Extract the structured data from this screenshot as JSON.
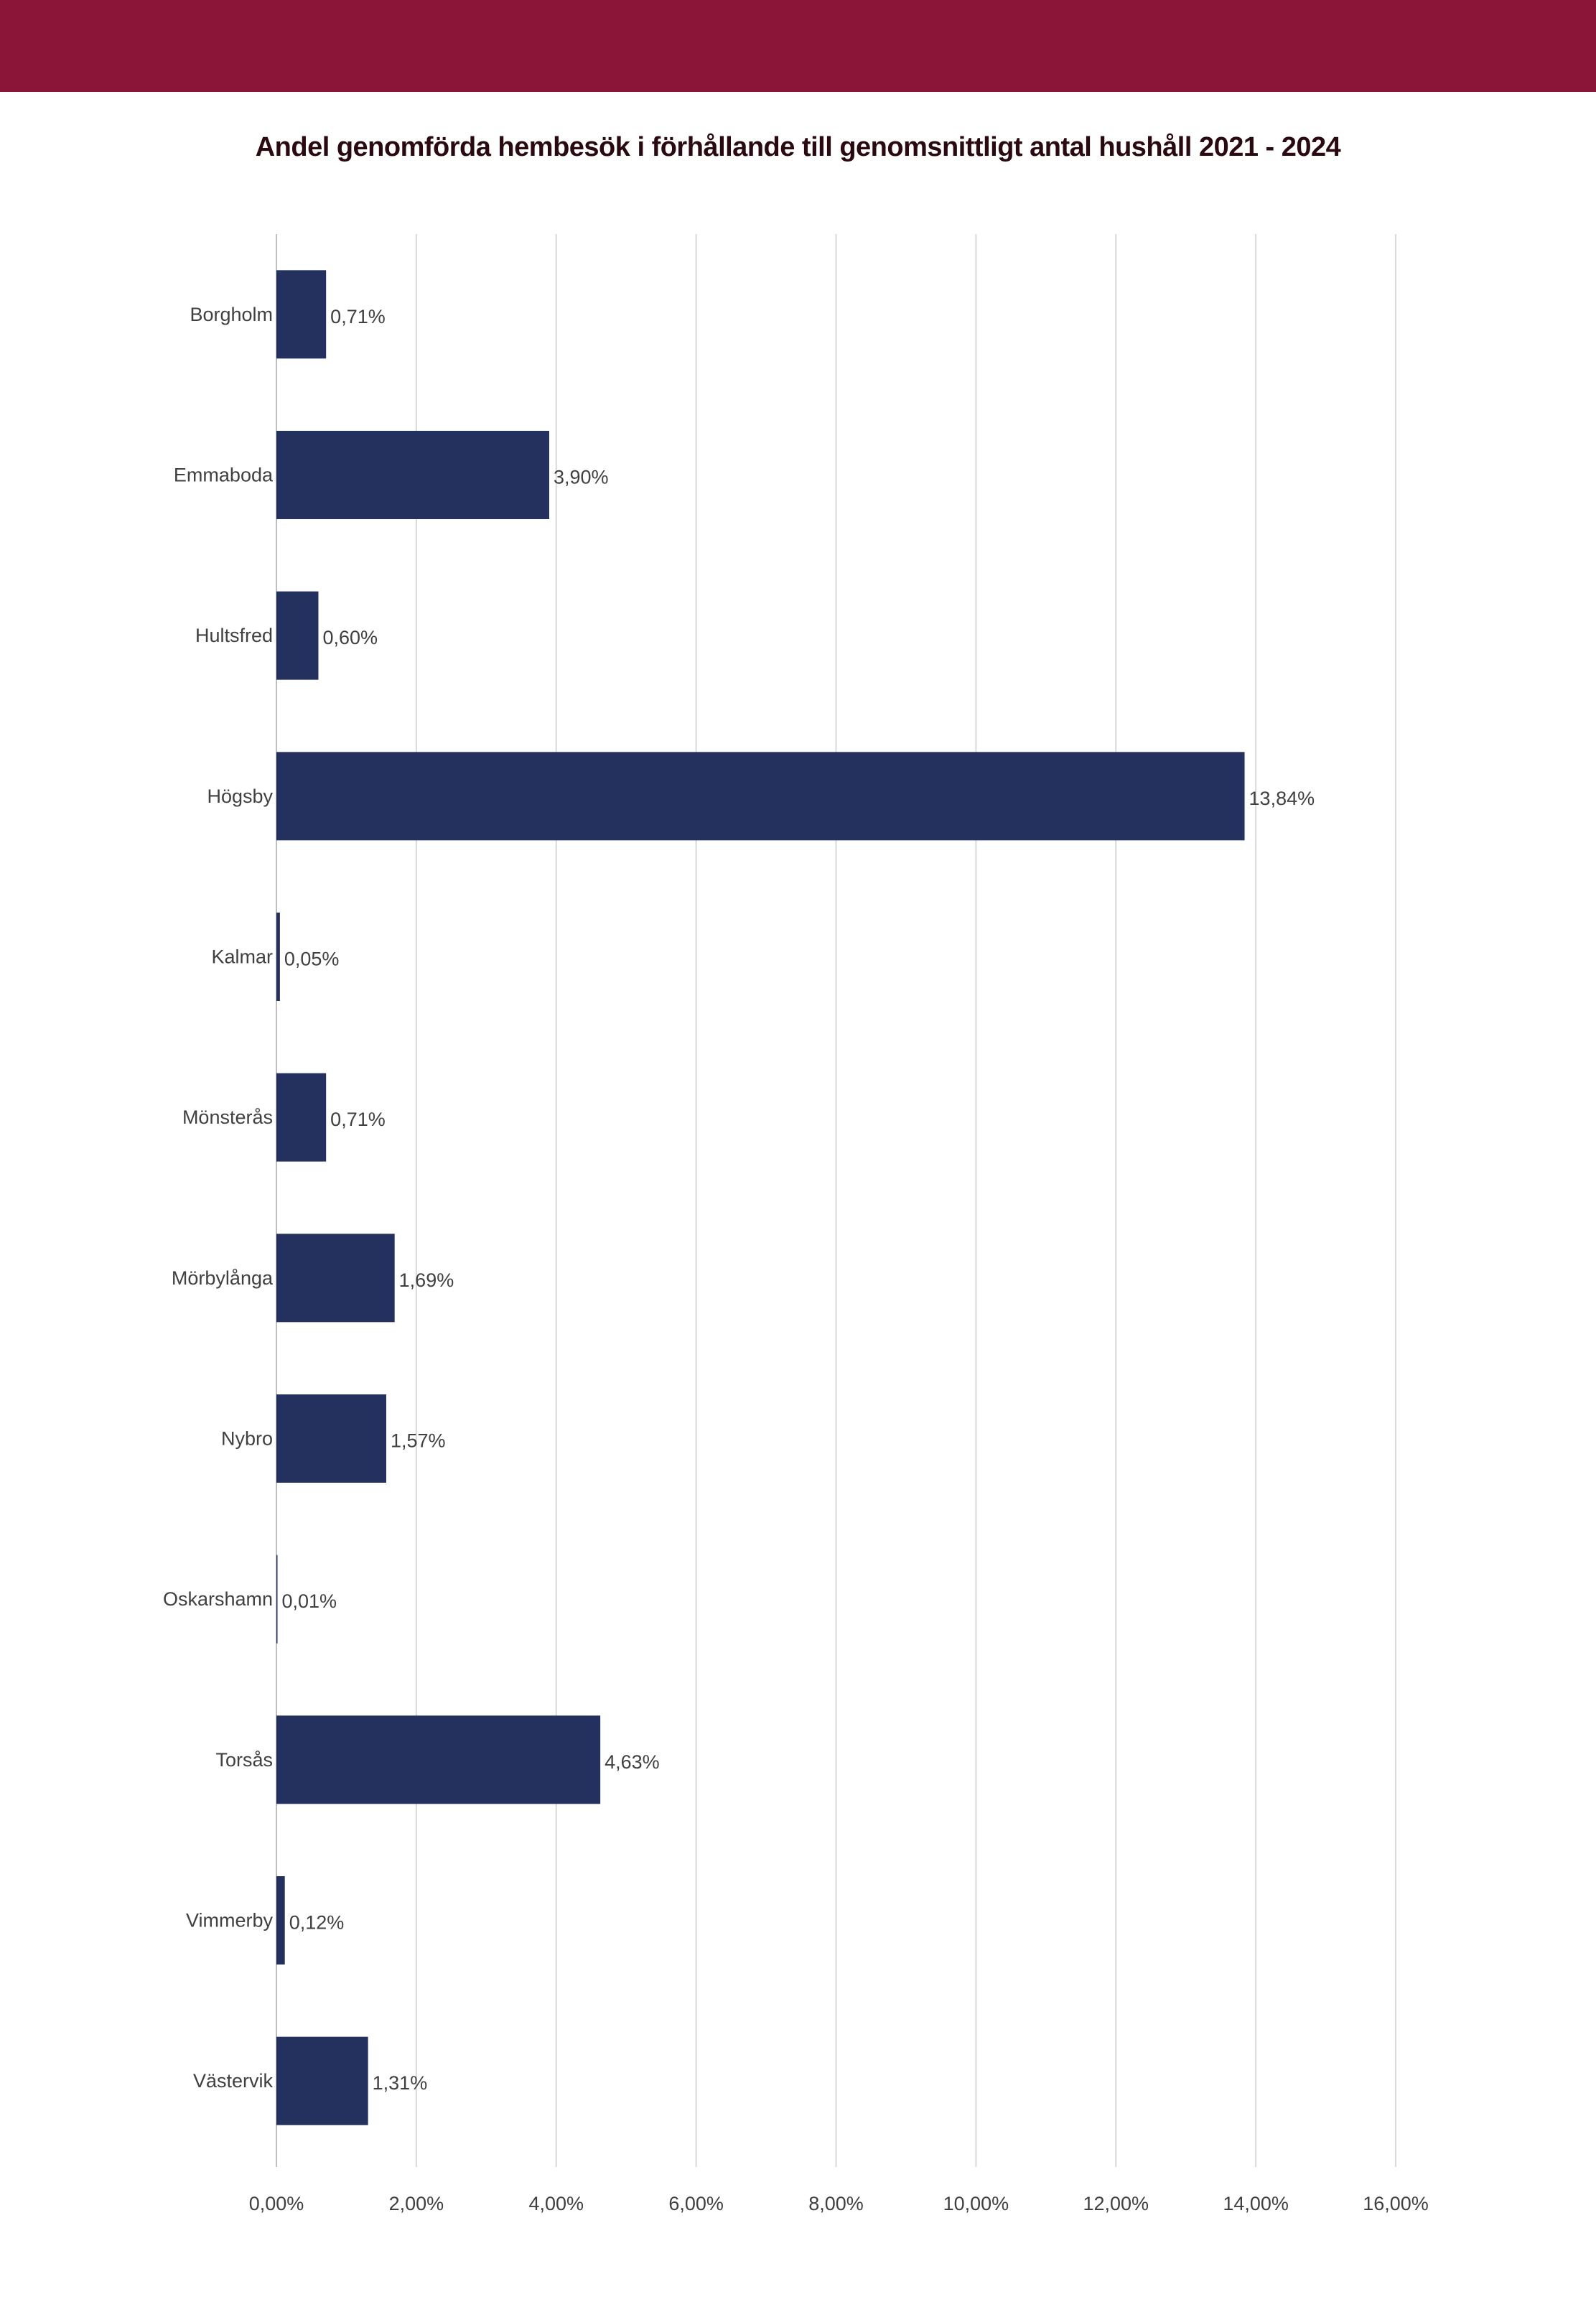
{
  "page": {
    "header_color": "#8B1538"
  },
  "chart_data": {
    "type": "bar",
    "orientation": "horizontal",
    "title": "Andel genomförda hembesök i förhållande till genomsnittligt antal hushåll 2021 - 2024",
    "xlabel": "",
    "ylabel": "",
    "categories": [
      "Borgholm",
      "Emmaboda",
      "Hultsfred",
      "Högsby",
      "Kalmar",
      "Mönsterås",
      "Mörbylånga",
      "Nybro",
      "Oskarshamn",
      "Torsås",
      "Vimmerby",
      "Västervik"
    ],
    "values": [
      0.71,
      3.9,
      0.6,
      13.84,
      0.05,
      0.71,
      1.69,
      1.57,
      0.01,
      4.63,
      0.12,
      1.31
    ],
    "data_labels": [
      "0,71%",
      "3,90%",
      "0,60%",
      "13,84%",
      "0,05%",
      "0,71%",
      "1,69%",
      "1,57%",
      "0,01%",
      "4,63%",
      "0,12%",
      "1,31%"
    ],
    "xlim": [
      0,
      16
    ],
    "x_ticks": [
      0,
      2,
      4,
      6,
      8,
      10,
      12,
      14,
      16
    ],
    "x_tick_labels": [
      "0,00%",
      "2,00%",
      "4,00%",
      "6,00%",
      "8,00%",
      "10,00%",
      "12,00%",
      "14,00%",
      "16,00%"
    ],
    "grid": "vertical",
    "legend": "none",
    "bar_color": "#24305E",
    "grid_color": "#D9D9D9",
    "label_color": "#404040"
  }
}
